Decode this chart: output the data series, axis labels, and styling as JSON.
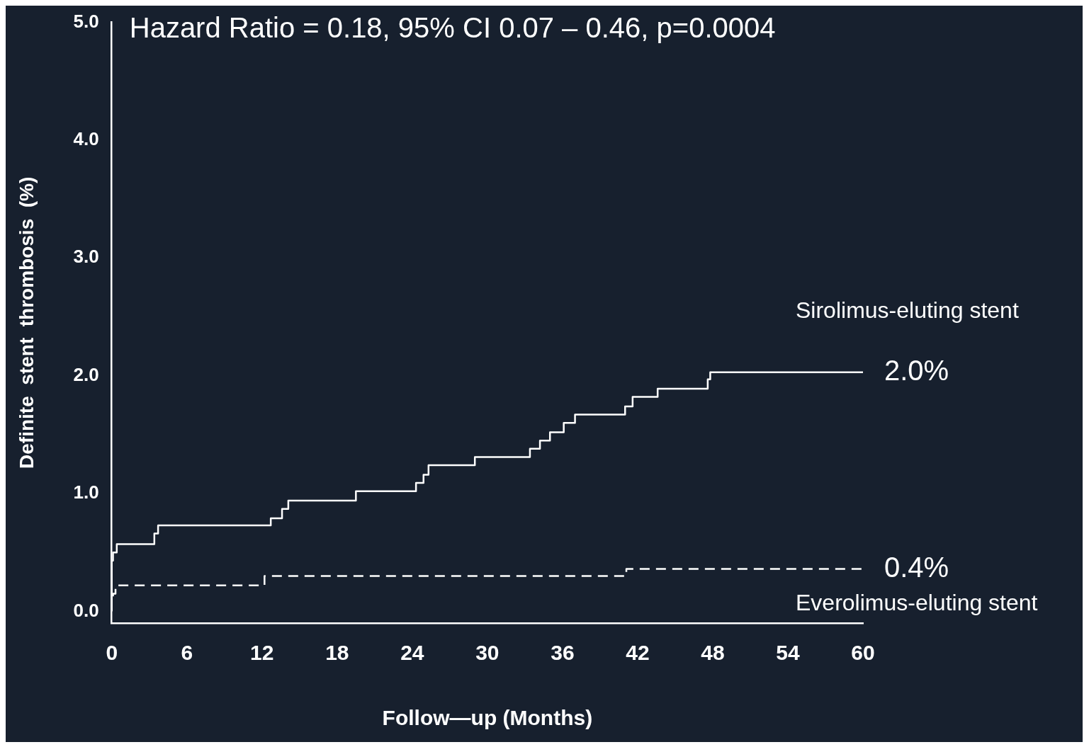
{
  "chart_data": {
    "type": "step",
    "xlabel": "Follow—up (Months)",
    "ylabel": "Definite  stent  thrombosis  (%)",
    "xlim": [
      0,
      60
    ],
    "xticks": [
      0,
      6,
      12,
      18,
      24,
      30,
      36,
      42,
      48,
      54,
      60
    ],
    "ylim": [
      -0.1,
      5.0
    ],
    "yticks": [
      {
        "value": 0,
        "label": "0.0"
      },
      {
        "value": 1,
        "label": "1.0"
      },
      {
        "value": 2,
        "label": "2.0"
      },
      {
        "value": 3,
        "label": "3.0"
      },
      {
        "value": 4,
        "label": "4.0"
      },
      {
        "value": 5,
        "label": "5.0"
      }
    ],
    "grid": false,
    "legend": false,
    "marker": "none",
    "series": [
      {
        "name": "Sirolimus-eluting stent",
        "color": "#ffffff",
        "line_style": "solid",
        "x": [
          0,
          0.1,
          0.4,
          3.4,
          3.7,
          12.7,
          13.6,
          14.1,
          19.5,
          24.3,
          24.9,
          25.3,
          29.0,
          33.4,
          34.2,
          35.0,
          36.1,
          37.0,
          41.0,
          41.6,
          43.6,
          47.6,
          47.8,
          57.8,
          60
        ],
        "values": [
          0,
          0.43,
          0.5,
          0.57,
          0.66,
          0.73,
          0.79,
          0.87,
          0.94,
          1.02,
          1.09,
          1.16,
          1.24,
          1.31,
          1.38,
          1.45,
          1.52,
          1.6,
          1.67,
          1.74,
          1.82,
          1.89,
          1.97,
          2.03,
          2.03
        ]
      },
      {
        "name": "Everolimus-eluting stent",
        "color": "#ffffff",
        "line_style": "dashed",
        "x": [
          0,
          0.1,
          0.3,
          12.2,
          41.1,
          55.1,
          60
        ],
        "values": [
          0,
          0.08,
          0.15,
          0.22,
          0.3,
          0.36,
          0.36
        ]
      }
    ],
    "annotations": [
      "Hazard Ratio = 0.18, 95% CI 0.07 – 0.46, p=0.0004",
      {
        "text": "2.0%",
        "x": 60,
        "y": 2.03
      },
      {
        "text": "0.4%",
        "x": 60,
        "y": 0.36
      }
    ]
  }
}
